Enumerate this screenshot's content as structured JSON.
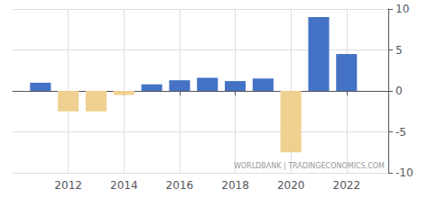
{
  "chart_data": {
    "type": "bar",
    "x": [
      2011,
      2012,
      2013,
      2014,
      2015,
      2016,
      2017,
      2018,
      2019,
      2020,
      2021,
      2022
    ],
    "values": [
      1.0,
      -2.5,
      -2.5,
      -0.5,
      0.8,
      1.3,
      1.6,
      1.2,
      1.5,
      -7.5,
      9.0,
      4.5
    ],
    "colors": [
      "#4472c4",
      "#f0d090",
      "#f0d090",
      "#f0d090",
      "#4472c4",
      "#4472c4",
      "#4472c4",
      "#4472c4",
      "#4472c4",
      "#f0d090",
      "#4472c4",
      "#4472c4"
    ],
    "xlim": [
      2010.0,
      2023.5
    ],
    "xticks": [
      2012,
      2014,
      2016,
      2018,
      2020,
      2022
    ],
    "ylim": [
      -10,
      10
    ],
    "yticks": [
      -10,
      -5,
      0,
      5,
      10
    ],
    "grid": true,
    "annotations": [
      "WORLDBANK | TRADINGECONOMICS.COM"
    ]
  }
}
